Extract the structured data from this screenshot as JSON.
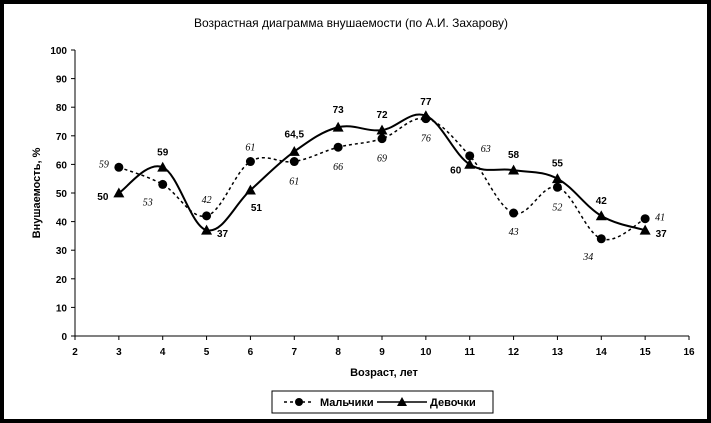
{
  "chart_data": {
    "type": "line",
    "title": "Возрастная диаграмма внушаемости (по А.И. Захарову)",
    "xlabel": "Возраст, лет",
    "ylabel": "Внушаемость, %",
    "xlim": [
      2,
      16
    ],
    "ylim": [
      0,
      100
    ],
    "x_ticks": [
      "2",
      "3",
      "4",
      "5",
      "6",
      "7",
      "8",
      "9",
      "10",
      "11",
      "12",
      "13",
      "14",
      "15",
      "16"
    ],
    "y_ticks": [
      "0",
      "10",
      "20",
      "30",
      "40",
      "50",
      "60",
      "70",
      "80",
      "90",
      "100"
    ],
    "grid": false,
    "legend_position": "bottom",
    "series": [
      {
        "name": "Мальчики",
        "style": "dashed",
        "marker": "circle",
        "x": [
          3,
          4,
          5,
          6,
          7,
          8,
          9,
          10,
          11,
          12,
          13,
          14,
          15
        ],
        "values": [
          59,
          53,
          42,
          61,
          61,
          66,
          69,
          76,
          63,
          43,
          52,
          34,
          41
        ],
        "labels": [
          "59",
          "53",
          "42",
          "61",
          "61",
          "66",
          "69",
          "76",
          "63",
          "43",
          "52",
          "34",
          "41"
        ]
      },
      {
        "name": "Девочки",
        "style": "solid",
        "marker": "triangle",
        "x": [
          3,
          4,
          5,
          6,
          7,
          8,
          9,
          10,
          11,
          12,
          13,
          14,
          15
        ],
        "values": [
          50,
          59,
          37,
          51,
          64.5,
          73,
          72,
          77,
          60,
          58,
          55,
          42,
          37
        ],
        "labels": [
          "50",
          "59",
          "37",
          "51",
          "64,5",
          "73",
          "72",
          "77",
          "60",
          "58",
          "55",
          "42",
          "37"
        ]
      }
    ]
  },
  "colors": {
    "line": "#000000",
    "background": "#ffffff",
    "frame": "#000000"
  }
}
